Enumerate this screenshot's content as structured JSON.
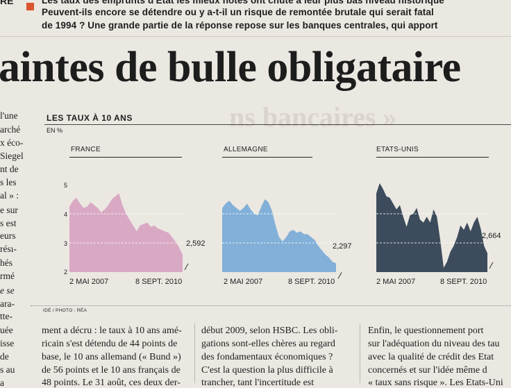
{
  "article": {
    "top_left_fragment": "RE",
    "chapo_lines": [
      "Les taux des emprunts d'Etat les mieux notés ont chuté à leur plus bas niveau historique",
      "Peuvent-ils encore se détendre ou y a-t-il un risque de remontée brutale qui serait fatal",
      "de 1994 ? Une grande partie de la réponse repose sur les banques centrales, qui apport"
    ],
    "headline": "aintes de bulle obligataire",
    "ghost_headline": "ns bancaires »",
    "left_column_fragments": [
      "l'une",
      "arché",
      "x éco-",
      "Siegel",
      "nt de",
      "s les",
      "al » :",
      "e sur",
      "s est",
      "eurs",
      "résı-",
      "hés",
      "rmé",
      "e se",
      "ara-",
      "tte-",
      "uée",
      "isse",
      "de",
      "s au",
      "a"
    ],
    "bottom_columns": [
      [
        "ment a décru : le taux à 10 ans amé-",
        "ricain s'est détendu de 44 points de",
        "base, le 10 ans allemand (« Bund »)",
        "de 56 points et le 10 ans français de",
        "48 points. Le 31 août, ces deux der-"
      ],
      [
        "début 2009, selon HSBC. Les obli-",
        "gations sont-elles chères au regard",
        "des fondamentaux économiques ?",
        "C'est la question la plus difficile à",
        "trancher, tant l'incertitude est"
      ],
      [
        "Enfin, le questionnement port",
        "sur l'adéquation du niveau des tau",
        "avec la qualité de crédit des Etat",
        "concernés et sur l'idée même d",
        "« taux sans risque ». Les Etats-Uni"
      ]
    ]
  },
  "chart": {
    "title": "LES TAUX À 10 ANS",
    "unit": "EN %",
    "credit": "IDÉ / PHOTO : RÉA",
    "y_ticks": [
      "5",
      "4",
      "3",
      "2"
    ],
    "colors": {
      "France": "#d9a9c4",
      "Allemagne": "#82b0d8",
      "Etats-Unis": "#3d4c5c"
    }
  },
  "chart_data": {
    "type": "area",
    "title": "LES TAUX À 10 ANS",
    "ylabel": "EN %",
    "ylim": [
      2,
      5
    ],
    "xlabels": [
      "2 MAI 2007",
      "8 SEPT. 2010"
    ],
    "panels": [
      {
        "name": "FRANCE",
        "last_value": "2,592",
        "values": [
          4.25,
          4.45,
          4.55,
          4.35,
          4.2,
          4.25,
          4.4,
          4.3,
          4.2,
          4.05,
          4.15,
          4.3,
          4.5,
          4.6,
          4.7,
          4.3,
          4.0,
          3.8,
          3.6,
          3.4,
          3.6,
          3.65,
          3.7,
          3.55,
          3.6,
          3.5,
          3.45,
          3.4,
          3.35,
          3.2,
          3.05,
          2.85,
          2.6
        ]
      },
      {
        "name": "ALLEMAGNE",
        "last_value": "2,297",
        "values": [
          4.2,
          4.35,
          4.45,
          4.3,
          4.2,
          4.1,
          4.2,
          4.35,
          4.15,
          4.0,
          3.95,
          4.25,
          4.5,
          4.4,
          4.1,
          3.6,
          3.2,
          3.05,
          3.2,
          3.4,
          3.45,
          3.35,
          3.4,
          3.3,
          3.3,
          3.2,
          3.1,
          2.9,
          2.75,
          2.6,
          2.5,
          2.35,
          2.3
        ]
      },
      {
        "name": "ETATS-UNIS",
        "last_value": "2,664",
        "values": [
          4.7,
          5.05,
          4.85,
          4.6,
          4.55,
          4.35,
          4.15,
          4.3,
          3.9,
          3.55,
          3.95,
          4.0,
          4.2,
          3.8,
          3.7,
          3.9,
          3.7,
          4.15,
          3.9,
          3.1,
          2.15,
          2.35,
          2.7,
          2.9,
          3.2,
          3.6,
          3.45,
          3.7,
          3.4,
          3.7,
          3.9,
          3.5,
          2.9,
          2.65
        ]
      }
    ]
  }
}
